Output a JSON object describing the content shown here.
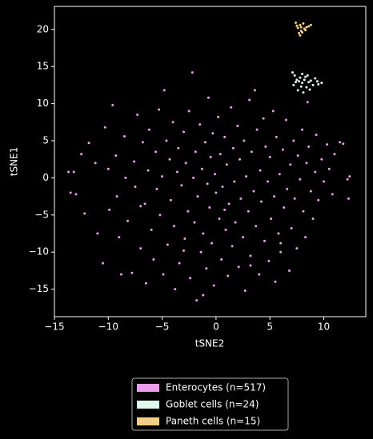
{
  "chart_data": {
    "type": "scatter",
    "x_label": "tSNE2",
    "y_label": "tSNE1",
    "xlim": [
      -15,
      13.9
    ],
    "ylim": [
      -18.7,
      23.1
    ],
    "xticks": [
      {
        "value": -15,
        "label": "−15"
      },
      {
        "value": -10,
        "label": "−10"
      },
      {
        "value": -5,
        "label": "−5"
      },
      0,
      5,
      10
    ],
    "yticks": [
      {
        "value": -15,
        "label": "−15"
      },
      {
        "value": -10,
        "label": "−10"
      },
      {
        "value": -5,
        "label": "−5"
      },
      0,
      5,
      10,
      15,
      20
    ],
    "legend": "below",
    "series": [
      {
        "name": "Enterocytes (n=517)",
        "color": "#e99ee9",
        "x": [
          -13.7,
          -13.2,
          -13.5,
          -13,
          -12.2,
          -12.5,
          -11.8,
          -11.2,
          -11,
          -10.5,
          -10.3,
          -10,
          -9.9,
          -9.6,
          -9.3,
          -9.2,
          -9,
          -8.8,
          -8.5,
          -8.4,
          -8.2,
          -7.8,
          -7.6,
          -7.5,
          -7.3,
          -7,
          -6.8,
          -6.6,
          -6.5,
          -6.3,
          -6.2,
          -6,
          -5.8,
          -5.6,
          -5.5,
          -5.3,
          -5.2,
          -5,
          -4.9,
          -4.8,
          -4.6,
          -4.5,
          -4.3,
          -4.2,
          -4,
          -3.9,
          -3.8,
          -3.6,
          -3.5,
          -3.4,
          -3.2,
          -3,
          -2.9,
          -2.8,
          -2.6,
          -2.5,
          -2.4,
          -2.2,
          -2.1,
          -2,
          -1.9,
          -1.8,
          -1.7,
          -1.5,
          -1.4,
          -1.3,
          -1.2,
          -1,
          -0.9,
          -0.8,
          -0.7,
          -0.6,
          -0.5,
          -0.4,
          -0.3,
          -0.2,
          -0.1,
          0,
          0.2,
          0.3,
          0.4,
          0.5,
          0.6,
          0.8,
          0.9,
          1,
          1.1,
          1.2,
          1.4,
          1.5,
          1.6,
          1.7,
          1.8,
          2,
          2.1,
          2.2,
          2.3,
          2.5,
          2.6,
          2.7,
          2.8,
          3,
          3.1,
          3.2,
          3.3,
          3.5,
          3.6,
          3.7,
          3.8,
          4,
          4.1,
          4.2,
          4.4,
          4.5,
          4.6,
          4.8,
          4.9,
          5,
          5.1,
          5.3,
          5.4,
          5.5,
          5.6,
          5.8,
          5.9,
          6,
          6.2,
          6.3,
          6.5,
          6.6,
          6.8,
          6.9,
          7,
          7.2,
          7.3,
          7.5,
          7.6,
          7.8,
          8,
          8.1,
          8.3,
          8.4,
          8.6,
          8.8,
          9,
          9.2,
          9.3,
          9.5,
          9.8,
          10,
          10.3,
          10.5,
          10.8,
          11,
          11.5,
          11.8,
          12.2,
          12.4,
          12.3,
          8.5,
          -1.2,
          3.2,
          -7,
          -3,
          6,
          0.8
        ],
        "values": [
          0.8,
          0.8,
          -2,
          -2.2,
          -4.8,
          3.2,
          4.7,
          2,
          -7.5,
          -11.5,
          6.8,
          1.2,
          -4.3,
          9.8,
          3,
          -2.5,
          -8,
          -13,
          5.6,
          0,
          -5.8,
          -12.8,
          2.2,
          -1.2,
          8.5,
          -9.5,
          4.8,
          -3.5,
          -14.2,
          1,
          6.5,
          -7,
          -11,
          3.5,
          -1.5,
          9.2,
          -5,
          0.2,
          -13,
          11.8,
          5,
          -9,
          2.5,
          -3,
          7.5,
          -6.5,
          -15,
          0.8,
          4,
          -11.5,
          -1,
          6.2,
          -8.2,
          2,
          -4.5,
          9,
          -13.5,
          14.2,
          0,
          -6,
          3.5,
          -16.5,
          -2.5,
          7.2,
          -10,
          1.2,
          -7.5,
          4.8,
          -12.2,
          -0.8,
          10.8,
          -4,
          2.8,
          -8.8,
          6,
          -14.5,
          0.5,
          -2,
          8.2,
          -5.5,
          3.2,
          -11,
          -1.2,
          5.5,
          -7,
          1.8,
          -13.2,
          -3.5,
          9.5,
          -9.2,
          4,
          -0.5,
          -6,
          7,
          -12,
          2.5,
          -2.8,
          -8,
          5,
          -15.2,
          0.2,
          -4.5,
          10.5,
          -10.5,
          3.5,
          -1.8,
          11.8,
          -6.5,
          6.5,
          -13,
          1,
          -3.2,
          8,
          -8.5,
          4.2,
          -0.5,
          -11.2,
          2.8,
          -5.5,
          9,
          -2.5,
          -14,
          5.5,
          -7.5,
          0.5,
          -10,
          3.8,
          -4,
          7.8,
          -1.5,
          -12.5,
          1.8,
          -6.8,
          5,
          -2.8,
          -9.5,
          3,
          -0.2,
          6.5,
          -4.5,
          -8,
          2,
          4.2,
          -1.8,
          -5.5,
          0.8,
          5.8,
          -3,
          2.5,
          -0.5,
          4.5,
          1.2,
          -2.2,
          3.2,
          4.8,
          4.6,
          -0.2,
          0.2,
          -2.8,
          10.2,
          -15.8,
          -11.8,
          -3.8,
          -9.8,
          -8.8,
          -4.3
        ]
      },
      {
        "name": "Goblet cells (n=24)",
        "color": "#e0f8ee",
        "x": [
          7.1,
          7.3,
          7.5,
          7.2,
          7.6,
          7.8,
          8,
          8,
          8.2,
          8.4,
          8.5,
          8.6,
          8.8,
          9,
          9.2,
          9.5,
          9.8,
          7.9,
          8.3,
          7.4,
          8.7,
          9.4,
          8.1,
          7.7
        ],
        "values": [
          14.2,
          13.8,
          13.2,
          12.5,
          11.8,
          13.5,
          14,
          12.8,
          13.2,
          12.2,
          13.8,
          12.9,
          13.1,
          12.5,
          13.4,
          12.6,
          12.8,
          12.3,
          13.6,
          12.9,
          11.9,
          13,
          11.5,
          13
        ]
      },
      {
        "name": "Paneth cells (n=15)",
        "color": "#f2cf86",
        "x": [
          7.4,
          7.8,
          8.1,
          8.8,
          7.6,
          7.9,
          8.2,
          7.7,
          7.8,
          8,
          8.4,
          7.5,
          8.3,
          7.9,
          8.6
        ],
        "values": [
          20.9,
          20.6,
          20.8,
          20.6,
          20.2,
          19.8,
          20.1,
          19.5,
          19.2,
          19.6,
          20.3,
          20.5,
          19.9,
          20.3,
          20.4
        ]
      }
    ]
  }
}
